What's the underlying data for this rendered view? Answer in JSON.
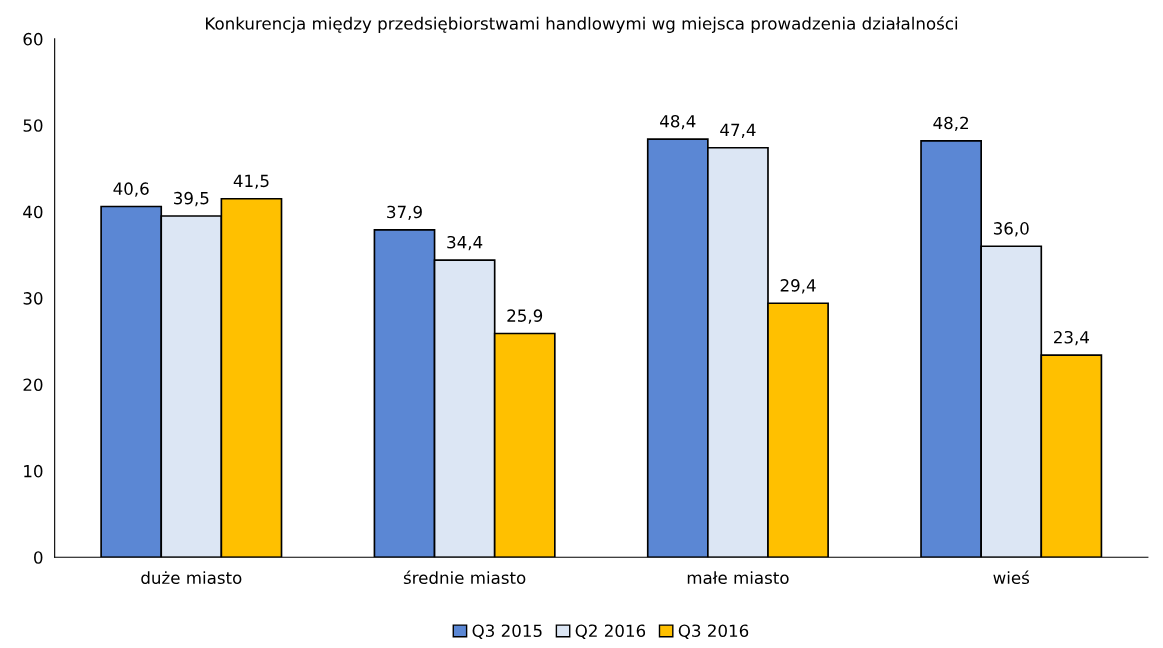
{
  "chart_data": {
    "type": "bar",
    "title": "Konkurencja między przedsiębiorstwami handlowymi wg miejsca prowadzenia działalności",
    "categories": [
      "duże miasto",
      "średnie miasto",
      "małe miasto",
      "wieś"
    ],
    "series": [
      {
        "name": "Q3 2015",
        "color": "#5b87d4",
        "values": [
          40.6,
          37.9,
          48.4,
          48.2
        ],
        "value_labels": [
          "40,6",
          "37,9",
          "48,4",
          "48,2"
        ]
      },
      {
        "name": "Q2 2016",
        "color": "#dce6f4",
        "values": [
          39.5,
          34.4,
          47.4,
          36.0
        ],
        "value_labels": [
          "39,5",
          "34,4",
          "47,4",
          "36,0"
        ]
      },
      {
        "name": "Q3 2016",
        "color": "#ffc000",
        "values": [
          41.5,
          25.9,
          29.4,
          23.4
        ],
        "value_labels": [
          "41,5",
          "25,9",
          "29,4",
          "23,4"
        ]
      }
    ],
    "ylim": [
      0,
      60
    ],
    "yticks": [
      0,
      10,
      20,
      30,
      40,
      50,
      60
    ],
    "grid": false,
    "legend": "bottom"
  }
}
